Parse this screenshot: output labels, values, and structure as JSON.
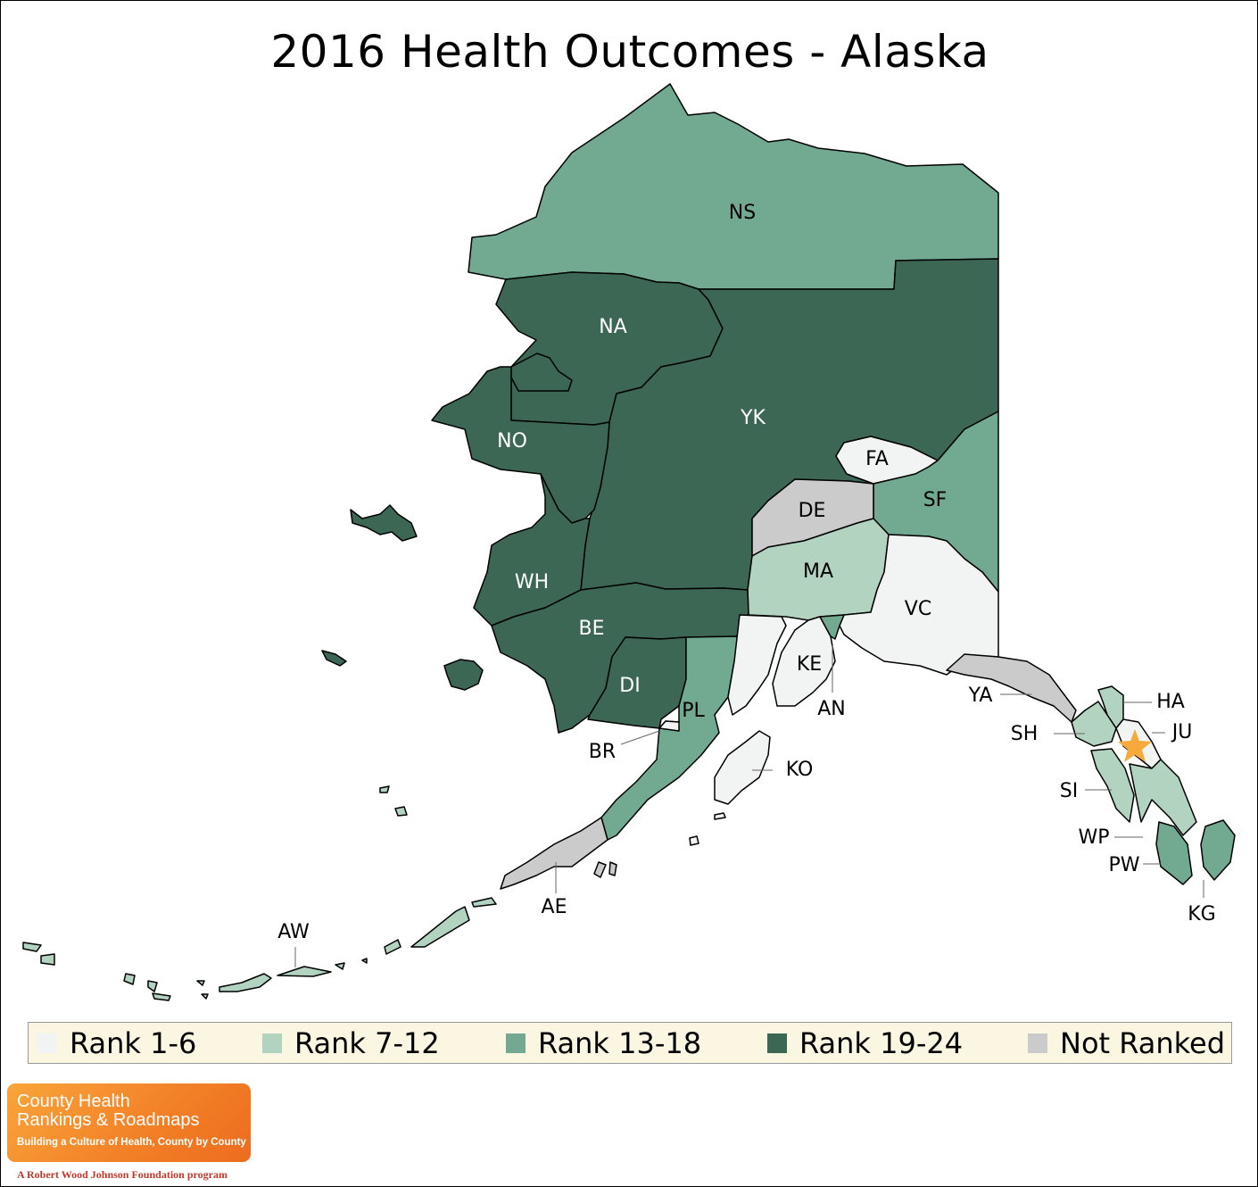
{
  "title": "2016 Health Outcomes - Alaska",
  "colors": {
    "rank_1_6": "#f1f4f2",
    "rank_7_12": "#b3d3c1",
    "rank_13_18": "#72aa91",
    "rank_19_24": "#3c6754",
    "not_ranked": "#cbcbcb",
    "highlight_star": "#f8a93b"
  },
  "regions": {
    "NS": {
      "label": "NS",
      "rank_group": "rank_13_18"
    },
    "NA": {
      "label": "NA",
      "rank_group": "rank_19_24"
    },
    "YK": {
      "label": "YK",
      "rank_group": "rank_19_24"
    },
    "NO": {
      "label": "NO",
      "rank_group": "rank_19_24"
    },
    "FA": {
      "label": "FA",
      "rank_group": "rank_1_6"
    },
    "SF": {
      "label": "SF",
      "rank_group": "rank_13_18"
    },
    "DE": {
      "label": "DE",
      "rank_group": "not_ranked"
    },
    "MA": {
      "label": "MA",
      "rank_group": "rank_7_12"
    },
    "VC": {
      "label": "VC",
      "rank_group": "rank_1_6"
    },
    "WH": {
      "label": "WH",
      "rank_group": "rank_19_24"
    },
    "BE": {
      "label": "BE",
      "rank_group": "rank_19_24"
    },
    "DI": {
      "label": "DI",
      "rank_group": "rank_19_24"
    },
    "PL": {
      "label": "PL",
      "rank_group": "rank_13_18"
    },
    "BR": {
      "label": "BR",
      "rank_group": "rank_1_6"
    },
    "KE": {
      "label": "KE",
      "rank_group": "rank_1_6"
    },
    "AN": {
      "label": "AN",
      "rank_group": "rank_13_18"
    },
    "KO": {
      "label": "KO",
      "rank_group": "rank_1_6"
    },
    "YA": {
      "label": "YA",
      "rank_group": "not_ranked"
    },
    "HA": {
      "label": "HA",
      "rank_group": "rank_7_12"
    },
    "SH": {
      "label": "SH",
      "rank_group": "rank_7_12"
    },
    "JU": {
      "label": "JU",
      "rank_group": "rank_1_6"
    },
    "SI": {
      "label": "SI",
      "rank_group": "rank_7_12"
    },
    "WP": {
      "label": "WP",
      "rank_group": "rank_7_12"
    },
    "PW": {
      "label": "PW",
      "rank_group": "rank_13_18"
    },
    "KG": {
      "label": "KG",
      "rank_group": "rank_13_18"
    },
    "AE": {
      "label": "AE",
      "rank_group": "not_ranked"
    },
    "AW": {
      "label": "AW",
      "rank_group": "rank_7_12"
    }
  },
  "legend": [
    {
      "key": "rank_1_6",
      "label": "Rank 1-6"
    },
    {
      "key": "rank_7_12",
      "label": "Rank 7-12"
    },
    {
      "key": "rank_13_18",
      "label": "Rank 13-18"
    },
    {
      "key": "rank_19_24",
      "label": "Rank 19-24"
    },
    {
      "key": "not_ranked",
      "label": "Not Ranked"
    }
  ],
  "logo": {
    "line1": "County Health",
    "line2": "Rankings & Roadmaps",
    "tagline": "Building a Culture of Health, County by County",
    "program": "A Robert Wood Johnson Foundation program"
  }
}
